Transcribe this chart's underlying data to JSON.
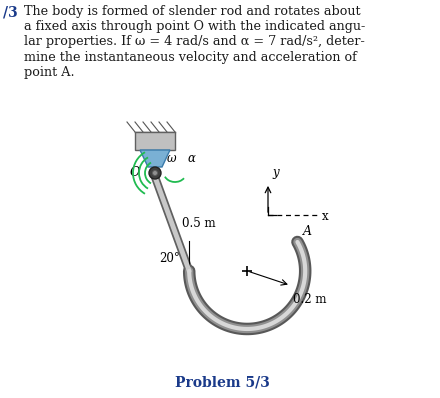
{
  "bg_color": "#ffffff",
  "text_color": "#1a1a1a",
  "blue_color": "#1a3a8a",
  "problem_number": "/3",
  "problem_text_line1": "The body is formed of slender rod and rotates about",
  "problem_text_line2": "a fixed axis through point O with the indicated angu-",
  "problem_text_line3": "lar properties. If ω = 4 rad/s and α = 7 rad/s², deter-",
  "problem_text_line4": "mine the instantaneous velocity and acceleration of",
  "problem_text_line5": "point A.",
  "problem_label": "Problem 5/3",
  "rod_color_dark": "#707070",
  "rod_color_light": "#d0d0d0",
  "arc_color": "#2ecc71",
  "wall_color": "#c0c0c0",
  "pivot_dark": "#404040",
  "pivot_light": "#888888",
  "hook_outer": "#606060",
  "hook_mid": "#989898",
  "hook_inner": "#d8d8d8"
}
